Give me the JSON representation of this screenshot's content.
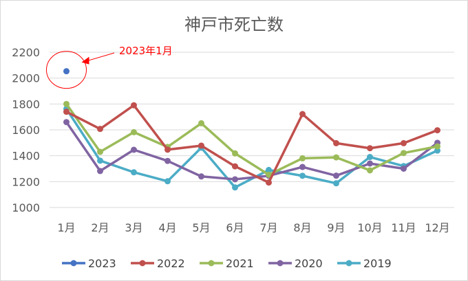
{
  "chart_data": {
    "type": "line",
    "title": "神戸市死亡数",
    "categories": [
      "1月",
      "2月",
      "3月",
      "4月",
      "5月",
      "6月",
      "7月",
      "8月",
      "9月",
      "10月",
      "11月",
      "12月"
    ],
    "ylim": [
      1000,
      2200
    ],
    "yticks": [
      1000,
      1200,
      1400,
      1600,
      1800,
      2000,
      2200
    ],
    "grid": true,
    "legend_position": "bottom",
    "series": [
      {
        "name": "2023",
        "color": "#4472C4",
        "values": [
          2053,
          null,
          null,
          null,
          null,
          null,
          null,
          null,
          null,
          null,
          null,
          null
        ]
      },
      {
        "name": "2022",
        "color": "#C0504D",
        "values": [
          1740,
          1607,
          1790,
          1447,
          1478,
          1318,
          1193,
          1722,
          1497,
          1458,
          1497,
          1597
        ]
      },
      {
        "name": "2021",
        "color": "#9BBB59",
        "values": [
          1800,
          1430,
          1582,
          1468,
          1651,
          1418,
          1253,
          1380,
          1387,
          1287,
          1421,
          1472
        ]
      },
      {
        "name": "2020",
        "color": "#8064A2",
        "values": [
          1660,
          1282,
          1446,
          1360,
          1240,
          1218,
          1245,
          1313,
          1246,
          1340,
          1300,
          1500
        ]
      },
      {
        "name": "2019",
        "color": "#4BACC6",
        "values": [
          1762,
          1362,
          1272,
          1203,
          1462,
          1155,
          1290,
          1245,
          1187,
          1390,
          1320,
          1440
        ]
      }
    ],
    "annotation": {
      "text": "2023年1月",
      "color": "#FF0000"
    }
  }
}
